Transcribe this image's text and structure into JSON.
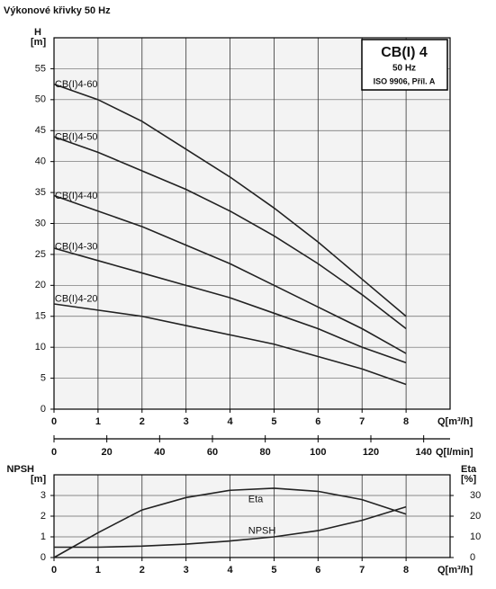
{
  "chart_data": [
    {
      "type": "line",
      "title": "Výkonové křivky 50 Hz",
      "annotations": [
        "CB(I) 4",
        "50 Hz",
        "ISO 9906, Příl. A"
      ],
      "y_label": "H",
      "y_unit": "[m]",
      "x_label": "Q[m³/h]",
      "x": [
        0,
        1,
        2,
        3,
        4,
        5,
        6,
        7,
        8
      ],
      "series": [
        {
          "name": "CB(I)4-60",
          "color": "#222222",
          "values": [
            52.5,
            50,
            46.5,
            42,
            37.5,
            32.5,
            27,
            21,
            15
          ]
        },
        {
          "name": "CB(I)4-50",
          "color": "#222222",
          "values": [
            44,
            41.5,
            38.5,
            35.5,
            32,
            28,
            23.5,
            18.5,
            13
          ]
        },
        {
          "name": "CB(I)4-40",
          "color": "#222222",
          "values": [
            34.5,
            32,
            29.5,
            26.5,
            23.5,
            20,
            16.5,
            13,
            9
          ]
        },
        {
          "name": "CB(I)4-30",
          "color": "#222222",
          "values": [
            26,
            24,
            22,
            20,
            18,
            15.5,
            13,
            10,
            7.5
          ]
        },
        {
          "name": "CB(I)4-20",
          "color": "#222222",
          "values": [
            17,
            16,
            15,
            13.5,
            12,
            10.5,
            8.5,
            6.5,
            4
          ]
        }
      ],
      "xlim": [
        0,
        9
      ],
      "xticks": [
        0,
        1,
        2,
        3,
        4,
        5,
        6,
        7,
        8
      ],
      "ylim": [
        0,
        60
      ],
      "yticks": [
        0,
        5,
        10,
        15,
        20,
        25,
        30,
        35,
        40,
        45,
        50,
        55
      ],
      "grid": true,
      "x2_label": "Q[l/min]",
      "x2lim": [
        0,
        150
      ],
      "x2ticks": [
        0,
        20,
        40,
        60,
        80,
        100,
        120,
        140
      ]
    },
    {
      "type": "line",
      "y_label": "NPSH",
      "y_unit": "[m]",
      "y2_label": "Eta",
      "y2_unit": "[%]",
      "x_label": "Q[m³/h]",
      "x": [
        0,
        1,
        2,
        3,
        4,
        5,
        6,
        7,
        8
      ],
      "series": [
        {
          "name": "Eta",
          "color": "#222222",
          "axis": "y2",
          "values": [
            0,
            12,
            23,
            29,
            32.5,
            33.5,
            32,
            28,
            21
          ]
        },
        {
          "name": "NPSH",
          "color": "#222222",
          "values": [
            0.5,
            0.5,
            0.55,
            0.65,
            0.8,
            1.0,
            1.3,
            1.8,
            2.45
          ]
        }
      ],
      "xlim": [
        0,
        9
      ],
      "xticks": [
        0,
        1,
        2,
        3,
        4,
        5,
        6,
        7,
        8
      ],
      "ylim": [
        0,
        4
      ],
      "yticks": [
        0,
        1,
        2,
        3
      ],
      "y2lim": [
        0,
        40
      ],
      "y2ticks": [
        0,
        10,
        20,
        30
      ],
      "grid": true
    }
  ]
}
